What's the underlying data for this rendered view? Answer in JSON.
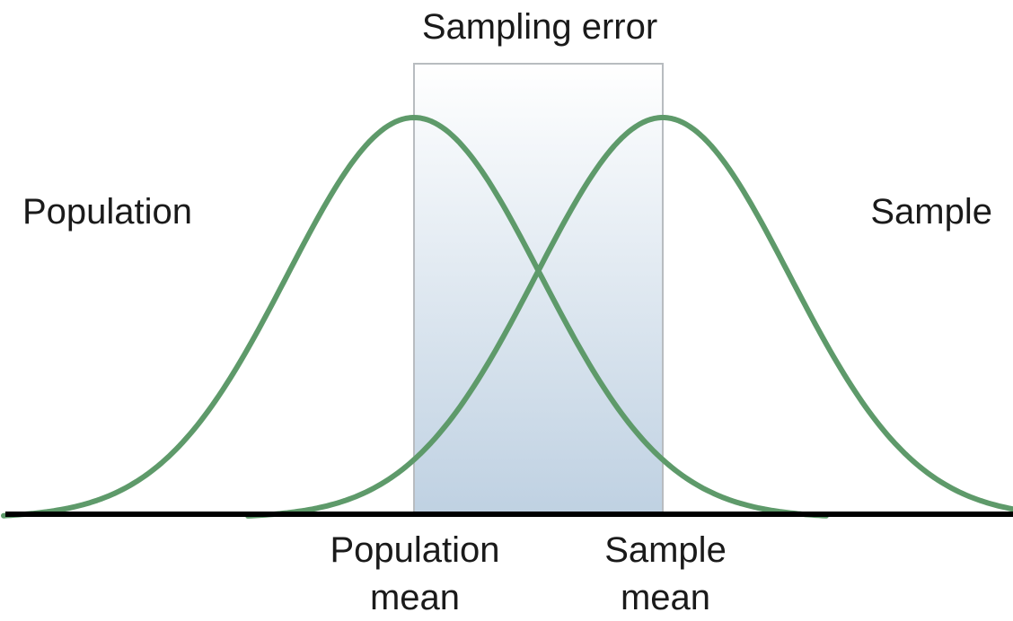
{
  "diagram": {
    "sampling_error_label": "Sampling error",
    "population_label": "Population",
    "sample_label": "Sample",
    "population_mean_line1": "Population",
    "population_mean_line2": "mean",
    "sample_mean_line1": "Sample",
    "sample_mean_line2": "mean"
  },
  "colors": {
    "curve": "#5e9a6a",
    "axis": "#000000",
    "error_box_top": "#ffffff",
    "error_box_bottom": "#bfd1e2",
    "error_box_border": "#b8bcc0",
    "text": "#1a1a1a"
  }
}
